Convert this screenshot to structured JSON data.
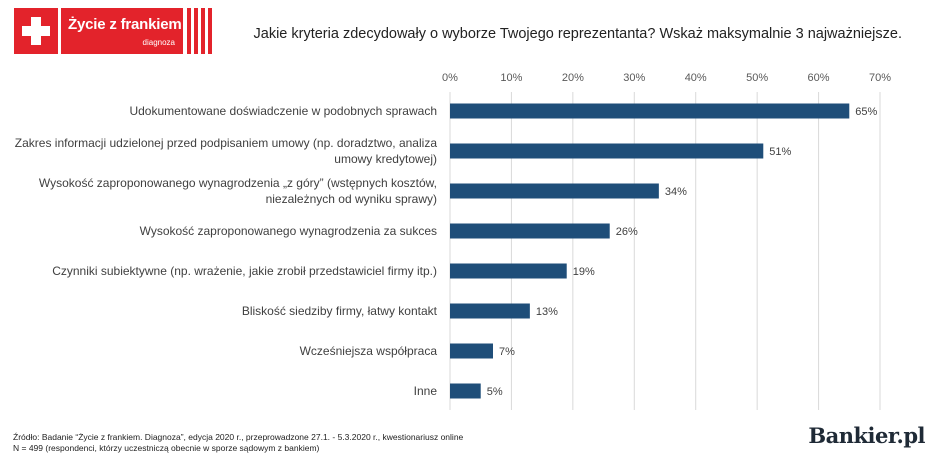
{
  "logo": {
    "title": "Życie z frankiem",
    "subtitle": "diagnoza",
    "color": "#e3232b"
  },
  "question": "Jakie kryteria zdecydowały o wyborze Twojego reprezentanta? Wskaż maksymalnie 3 najważniejsze.",
  "chart_data": {
    "type": "bar",
    "orientation": "horizontal",
    "categories": [
      "Udokumentowane doświadczenie w podobnych sprawach",
      "Zakres informacji udzielonej przed podpisaniem umowy (np. doradztwo, analiza umowy kredytowej)",
      "Wysokość zaproponowanego wynagrodzenia „z góry” (wstępnych kosztów, niezależnych od wyniku sprawy)",
      "Wysokość zaproponowanego wynagrodzenia za sukces",
      "Czynniki subiektywne (np. wrażenie, jakie zrobił przedstawiciel firmy itp.)",
      "Bliskość siedziby firmy, łatwy kontakt",
      "Wcześniejsza współpraca",
      "Inne"
    ],
    "values": [
      65,
      51,
      34,
      26,
      19,
      13,
      7,
      5
    ],
    "value_labels": [
      "65%",
      "51%",
      "34%",
      "26%",
      "19%",
      "13%",
      "7%",
      "5%"
    ],
    "xlim": [
      0,
      70
    ],
    "ticks": [
      0,
      10,
      20,
      30,
      40,
      50,
      60,
      70
    ],
    "tick_labels": [
      "0%",
      "10%",
      "20%",
      "30%",
      "40%",
      "50%",
      "60%",
      "70%"
    ],
    "grid": true,
    "bar_color": "#1f4e79"
  },
  "footer": {
    "source_line1": "Źródło: Badanie “Życie z frankiem. Diagnoza”, edycja 2020 r., przeprowadzone 27.1. - 5.3.2020 r., kwestionariusz online",
    "source_line2": "N = 499 (respondenci, którzy uczestniczą obecnie w sporze sądowym z bankiem)",
    "brand": "Bankier.pl"
  }
}
